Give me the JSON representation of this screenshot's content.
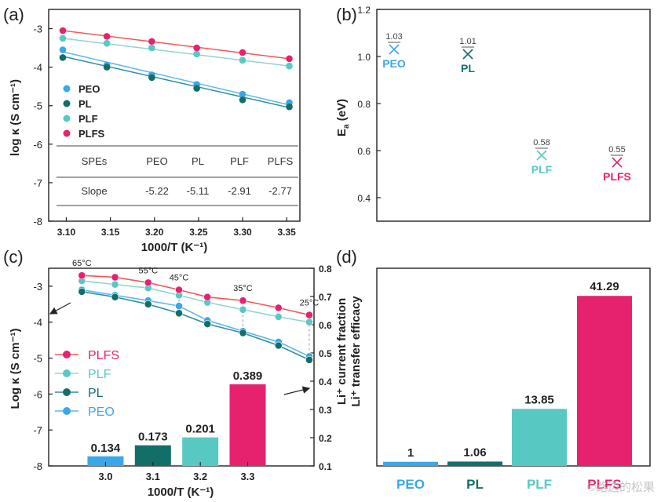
{
  "colors": {
    "PEO": "#3aa8e8",
    "PL": "#136e6a",
    "PLF": "#58c9c2",
    "PLFS": "#e6226e",
    "PEO_line": "#5bb8f0",
    "PL_line": "#2f8f9c",
    "PLF_line": "#8fd6cf",
    "PLFS_line": "#ee5a55"
  },
  "chart_data": [
    {
      "panel": "a",
      "panel_label": "(a)",
      "type": "scatter",
      "xlabel": "1000/T (K⁻¹)",
      "ylabel": "log κ (S cm⁻¹)",
      "xlim": [
        3.08,
        3.365
      ],
      "ylim": [
        -8,
        -2.5
      ],
      "xticks": [
        3.1,
        3.15,
        3.2,
        3.25,
        3.3,
        3.35
      ],
      "xtick_labels": [
        "3.10",
        "3.15",
        "3.20",
        "3.25",
        "3.30",
        "3.35"
      ],
      "yticks": [
        -3,
        -4,
        -5,
        -6,
        -7,
        -8
      ],
      "ytick_labels": [
        "-3",
        "-4",
        "-5",
        "-6",
        "-7",
        "-8"
      ],
      "x": [
        3.096,
        3.146,
        3.197,
        3.248,
        3.3,
        3.353
      ],
      "series": [
        {
          "name": "PEO",
          "values": [
            -3.55,
            -3.95,
            -4.2,
            -4.45,
            -4.7,
            -4.92
          ]
        },
        {
          "name": "PL",
          "values": [
            -3.75,
            -4.0,
            -4.27,
            -4.55,
            -4.85,
            -5.03
          ]
        },
        {
          "name": "PLF",
          "values": [
            -3.25,
            -3.38,
            -3.5,
            -3.66,
            -3.82,
            -3.97
          ]
        },
        {
          "name": "PLFS",
          "values": [
            -3.05,
            -3.2,
            -3.33,
            -3.5,
            -3.62,
            -3.78
          ]
        }
      ],
      "fit_lines": [
        {
          "name": "PEO",
          "start": -3.6,
          "end": -4.98
        },
        {
          "name": "PL",
          "start": -3.72,
          "end": -5.05
        },
        {
          "name": "PLF",
          "start": -3.25,
          "end": -3.97
        },
        {
          "name": "PLFS",
          "start": -3.05,
          "end": -3.78
        }
      ],
      "table": {
        "headers": [
          "SPEs",
          "PEO",
          "PL",
          "PLF",
          "PLFS"
        ],
        "row_label": "Slope",
        "values": [
          "-5.22",
          "-5.11",
          "-2.91",
          "-2.77"
        ]
      }
    },
    {
      "panel": "b",
      "panel_label": "(b)",
      "type": "scatter",
      "xlabel": "",
      "ylabel": "E",
      "ylabel_sub": "a",
      "ylabel_unit": " (eV)",
      "ylim": [
        0.3,
        1.2
      ],
      "yticks": [
        0.4,
        0.6,
        0.8,
        1.0,
        1.2
      ],
      "ytick_labels": [
        "0.4",
        "0.6",
        "0.8",
        "1.0",
        "1.2"
      ],
      "categories": [
        "PEO",
        "PL",
        "PLF",
        "PLFS"
      ],
      "values": [
        1.03,
        1.01,
        0.58,
        0.55
      ],
      "value_labels": [
        "1.03",
        "1.01",
        "0.58",
        "0.55"
      ]
    },
    {
      "panel": "c",
      "panel_label": "(c)",
      "type": "line+bar",
      "xlabel": "1000/T (K⁻¹)",
      "ylabel": "Log κ (S cm⁻¹)",
      "ylabel_right_1": "Li⁺ current fraction",
      "ylabel_right_2": "Li⁺ transfer efficacy",
      "xlim": [
        2.88,
        3.44
      ],
      "ylim": [
        -8,
        -2.5
      ],
      "ylim_right": [
        0.1,
        0.8
      ],
      "xticks": [
        3.0,
        3.1,
        3.2,
        3.3
      ],
      "xtick_labels": [
        "3.0",
        "3.1",
        "3.2",
        "3.3"
      ],
      "yticks": [
        -3,
        -4,
        -5,
        -6,
        -7,
        -8
      ],
      "ytick_labels": [
        "-3",
        "-4",
        "-5",
        "-6",
        "-7",
        "-8"
      ],
      "yticks_right": [
        0.1,
        0.2,
        0.3,
        0.4,
        0.5,
        0.6,
        0.7,
        0.8
      ],
      "ytick_labels_right": [
        "0.1",
        "0.2",
        "0.3",
        "0.4",
        "0.5",
        "0.6",
        "0.7",
        "0.8"
      ],
      "x": [
        2.95,
        3.02,
        3.09,
        3.155,
        3.215,
        3.29,
        3.365,
        3.43
      ],
      "series": [
        {
          "name": "PLFS",
          "values": [
            -2.7,
            -2.75,
            -2.9,
            -3.1,
            -3.3,
            -3.4,
            -3.6,
            -3.8
          ]
        },
        {
          "name": "PLF",
          "values": [
            -2.85,
            -2.95,
            -3.05,
            -3.25,
            -3.45,
            -3.65,
            -3.85,
            -4.0
          ]
        },
        {
          "name": "PL",
          "values": [
            -3.15,
            -3.3,
            -3.5,
            -3.75,
            -4.05,
            -4.3,
            -4.65,
            -5.05
          ]
        },
        {
          "name": "PEO",
          "values": [
            -3.1,
            -3.25,
            -3.4,
            -3.55,
            -3.95,
            -4.25,
            -4.55,
            -4.95
          ]
        }
      ],
      "temp_labels": [
        {
          "text": "65°C",
          "x": 2.95
        },
        {
          "text": "55°C",
          "x": 3.09
        },
        {
          "text": "45°C",
          "x": 3.155
        },
        {
          "text": "35°C",
          "x": 3.29
        },
        {
          "text": "25°C",
          "x": 3.43
        }
      ],
      "bars": {
        "categories": [
          "PEO",
          "PL",
          "PLF",
          "PLFS"
        ],
        "x": [
          3.0,
          3.1,
          3.2,
          3.3
        ],
        "values": [
          0.134,
          0.173,
          0.201,
          0.389
        ],
        "value_labels": [
          "0.134",
          "0.173",
          "0.201",
          "0.389"
        ]
      }
    },
    {
      "panel": "d",
      "panel_label": "(d)",
      "type": "bar",
      "categories": [
        "PEO",
        "PL",
        "PLF",
        "PLFS"
      ],
      "values": [
        1,
        1.06,
        13.85,
        41.29
      ],
      "value_labels": [
        "1",
        "1.06",
        "13.85",
        "41.29"
      ],
      "ylim": [
        0,
        48
      ]
    }
  ],
  "watermark": "©路边的松果"
}
